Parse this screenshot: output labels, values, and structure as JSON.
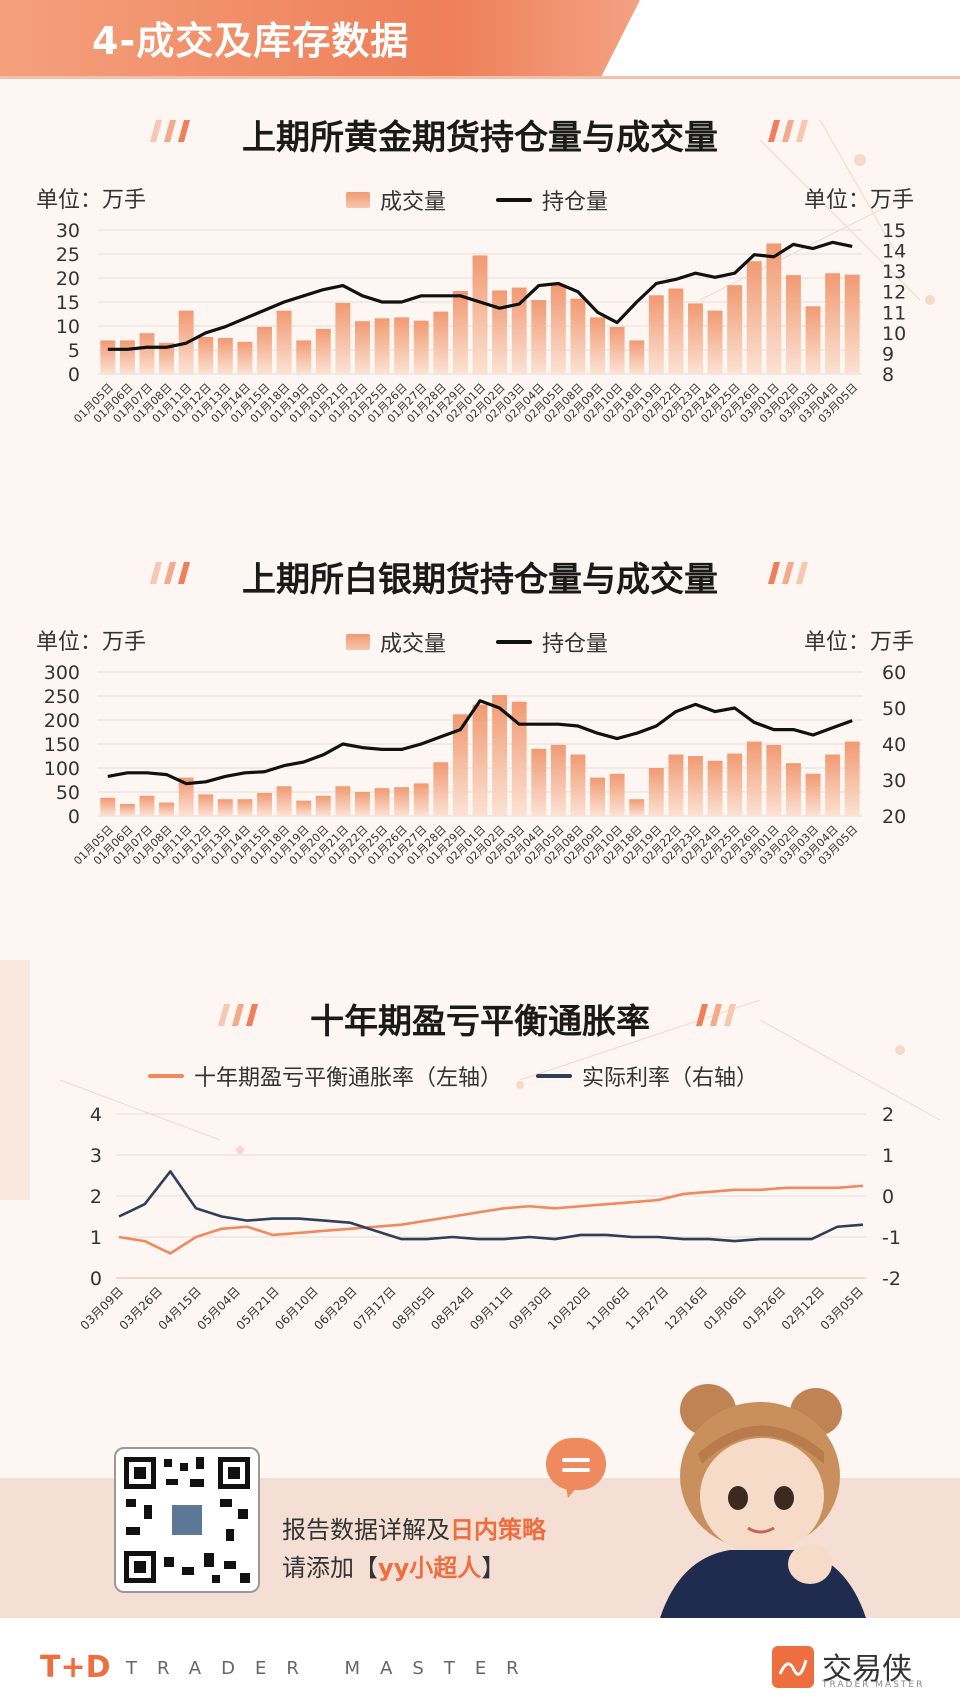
{
  "header": {
    "title": "4-成交及库存数据"
  },
  "charts": {
    "gold": {
      "title": "上期所黄金期货持仓量与成交量",
      "unit_left": "单位：万手",
      "unit_right": "单位：万手",
      "legend_bar": "成交量",
      "legend_line": "持仓量"
    },
    "silver": {
      "title": "上期所白银期货持仓量与成交量",
      "unit_left": "单位：万手",
      "unit_right": "单位：万手",
      "legend_bar": "成交量",
      "legend_line": "持仓量"
    },
    "breakeven": {
      "title": "十年期盈亏平衡通胀率",
      "legend_a": "十年期盈亏平衡通胀率（左轴）",
      "legend_b": "实际利率（右轴）"
    }
  },
  "colors": {
    "accent": "#ee7f58",
    "bar_top": "#f19a72",
    "bar_bottom": "#fbe2d4",
    "line_black": "#111111",
    "line_navy": "#2f3f58",
    "line_orange": "#ef8a5f"
  },
  "promo": {
    "line1_prefix": "报告数据详解及",
    "line1_highlight": "日内策略",
    "line2_prefix": "请添加【",
    "line2_highlight": "yy小超人",
    "line2_suffix": "】"
  },
  "footer": {
    "td_logo": "T+D",
    "td_text": "TRADER MASTER",
    "brand_name": "交易侠",
    "brand_sub": "TRADER MASTER"
  },
  "chart_data": [
    {
      "type": "bar",
      "title": "上期所黄金期货持仓量与成交量",
      "categories": [
        "01月05日",
        "01月06日",
        "01月07日",
        "01月08日",
        "01月11日",
        "01月12日",
        "01月13日",
        "01月14日",
        "01月15日",
        "01月18日",
        "01月19日",
        "01月20日",
        "01月21日",
        "01月22日",
        "01月25日",
        "01月26日",
        "01月27日",
        "01月28日",
        "01月29日",
        "02月01日",
        "02月02日",
        "02月03日",
        "02月04日",
        "02月05日",
        "02月08日",
        "02月09日",
        "02月10日",
        "02月18日",
        "02月19日",
        "02月22日",
        "02月23日",
        "02月24日",
        "02月25日",
        "02月26日",
        "03月01日",
        "03月02日",
        "03月03日",
        "03月04日",
        "03月05日"
      ],
      "series": [
        {
          "name": "成交量",
          "axis": "left",
          "values": [
            7,
            7,
            8.5,
            6.5,
            13.2,
            7.7,
            7.5,
            6.7,
            9.8,
            13.2,
            7,
            9.4,
            14.8,
            11,
            11.6,
            11.8,
            11.1,
            13,
            17.3,
            24.7,
            17.4,
            18,
            15.4,
            18.6,
            15.7,
            11.8,
            9.8,
            7,
            16.4,
            17.8,
            14.7,
            13.2,
            18.5,
            23.5,
            27.2,
            20.6,
            14.1,
            21,
            20.7
          ]
        },
        {
          "name": "持仓量",
          "axis": "right",
          "values": [
            9.2,
            9.2,
            9.3,
            9.3,
            9.5,
            10,
            10.3,
            10.7,
            11.1,
            11.5,
            11.8,
            12.1,
            12.3,
            11.8,
            11.5,
            11.5,
            11.8,
            11.8,
            11.8,
            11.5,
            11.2,
            11.4,
            12.3,
            12.4,
            12,
            11.0,
            10.5,
            11.5,
            12.4,
            12.6,
            12.9,
            12.7,
            12.9,
            13.8,
            13.7,
            14.3,
            14.1,
            14.4,
            14.2
          ]
        }
      ],
      "ylim_left": [
        0,
        30
      ],
      "ylim_right": [
        8,
        15
      ]
    },
    {
      "type": "bar",
      "title": "上期所白银期货持仓量与成交量",
      "categories": [
        "01月05日",
        "01月06日",
        "01月07日",
        "01月08日",
        "01月11日",
        "01月12日",
        "01月13日",
        "01月14日",
        "01月15日",
        "01月18日",
        "01月19日",
        "01月20日",
        "01月21日",
        "01月22日",
        "01月25日",
        "01月26日",
        "01月27日",
        "01月28日",
        "01月29日",
        "02月01日",
        "02月02日",
        "02月03日",
        "02月04日",
        "02月05日",
        "02月08日",
        "02月09日",
        "02月10日",
        "02月18日",
        "02月19日",
        "02月22日",
        "02月23日",
        "02月24日",
        "02月25日",
        "02月26日",
        "03月01日",
        "03月02日",
        "03月03日",
        "03月04日",
        "03月05日"
      ],
      "series": [
        {
          "name": "成交量",
          "axis": "left",
          "values": [
            38,
            25,
            42,
            28,
            80,
            45,
            35,
            35,
            48,
            62,
            32,
            42,
            62,
            50,
            58,
            60,
            68,
            112,
            212,
            232,
            252,
            238,
            140,
            148,
            128,
            80,
            88,
            35,
            100,
            128,
            125,
            115,
            130,
            155,
            148,
            110,
            88,
            128,
            155
          ]
        },
        {
          "name": "持仓量",
          "axis": "right",
          "values": [
            31,
            32,
            32,
            31.5,
            29,
            29.5,
            31,
            32,
            32.3,
            34,
            35,
            37,
            40,
            39,
            38.5,
            38.5,
            40,
            42,
            44,
            52,
            50,
            45.5,
            45.5,
            45.5,
            45,
            43,
            41.5,
            43,
            45,
            49,
            51,
            49,
            50,
            46,
            44,
            44,
            42.5,
            44.5,
            46.5
          ]
        }
      ],
      "ylim_left": [
        0,
        300
      ],
      "ylim_right": [
        20,
        60
      ]
    },
    {
      "type": "line",
      "title": "十年期盈亏平衡通胀率",
      "x_ticks": [
        "03月09日",
        "03月26日",
        "04月15日",
        "05月04日",
        "05月21日",
        "06月10日",
        "06月29日",
        "07月17日",
        "08月05日",
        "08月24日",
        "09月11日",
        "09月30日",
        "10月20日",
        "11月06日",
        "11月27日",
        "12月16日",
        "01月06日",
        "01月26日",
        "02月12日",
        "03月05日"
      ],
      "series": [
        {
          "name": "十年期盈亏平衡通胀率（左轴）",
          "axis": "left",
          "values": [
            1.0,
            0.9,
            0.6,
            1.0,
            1.2,
            1.25,
            1.05,
            1.1,
            1.15,
            1.2,
            1.25,
            1.3,
            1.4,
            1.5,
            1.6,
            1.7,
            1.75,
            1.7,
            1.75,
            1.8,
            1.85,
            1.9,
            2.05,
            2.1,
            2.15,
            2.15,
            2.2,
            2.2,
            2.2,
            2.25
          ]
        },
        {
          "name": "实际利率（右轴）",
          "axis": "right",
          "values": [
            -0.5,
            -0.2,
            0.6,
            -0.3,
            -0.5,
            -0.6,
            -0.55,
            -0.55,
            -0.6,
            -0.65,
            -0.85,
            -1.05,
            -1.05,
            -1.0,
            -1.05,
            -1.05,
            -1.0,
            -1.05,
            -0.95,
            -0.95,
            -1.0,
            -1.0,
            -1.05,
            -1.05,
            -1.1,
            -1.05,
            -1.05,
            -1.05,
            -0.75,
            -0.7
          ]
        }
      ],
      "ylim_left": [
        0,
        4
      ],
      "ylim_right": [
        -2,
        2
      ]
    }
  ]
}
